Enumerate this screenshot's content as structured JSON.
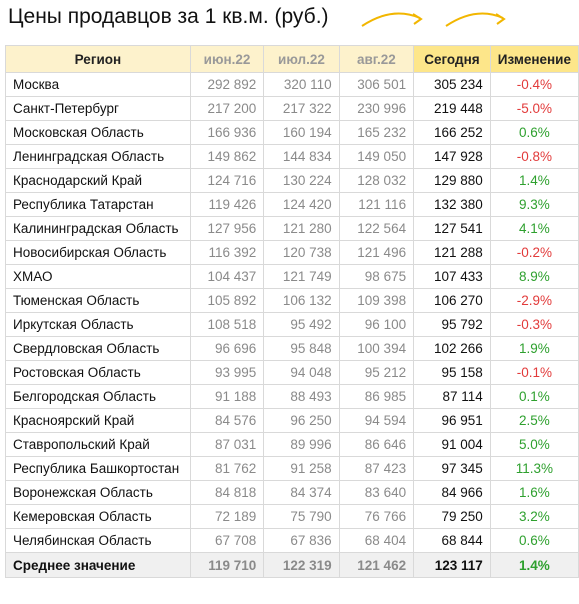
{
  "title": "Цены продавцов за 1 кв.м. (руб.)",
  "headers": [
    "Регион",
    "июн.22",
    "июл.22",
    "авг.22",
    "Сегодня",
    "Изменение"
  ],
  "rows": [
    {
      "region": "Москва",
      "jun": "292 892",
      "jul": "320 110",
      "aug": "306 501",
      "today": "305 234",
      "change": "-0.4%",
      "dir": "neg"
    },
    {
      "region": "Санкт-Петербург",
      "jun": "217 200",
      "jul": "217 322",
      "aug": "230 996",
      "today": "219 448",
      "change": "-5.0%",
      "dir": "neg"
    },
    {
      "region": "Московская Область",
      "jun": "166 936",
      "jul": "160 194",
      "aug": "165 232",
      "today": "166 252",
      "change": "0.6%",
      "dir": "pos"
    },
    {
      "region": "Ленинградская Область",
      "jun": "149 862",
      "jul": "144 834",
      "aug": "149 050",
      "today": "147 928",
      "change": "-0.8%",
      "dir": "neg"
    },
    {
      "region": "Краснодарский Край",
      "jun": "124 716",
      "jul": "130 224",
      "aug": "128 032",
      "today": "129 880",
      "change": "1.4%",
      "dir": "pos"
    },
    {
      "region": "Республика Татарстан",
      "jun": "119 426",
      "jul": "124 420",
      "aug": "121 116",
      "today": "132 380",
      "change": "9.3%",
      "dir": "pos"
    },
    {
      "region": "Калининградская Область",
      "jun": "127 956",
      "jul": "121 280",
      "aug": "122 564",
      "today": "127 541",
      "change": "4.1%",
      "dir": "pos"
    },
    {
      "region": "Новосибирская Область",
      "jun": "116 392",
      "jul": "120 738",
      "aug": "121 496",
      "today": "121 288",
      "change": "-0.2%",
      "dir": "neg"
    },
    {
      "region": "ХМАО",
      "jun": "104 437",
      "jul": "121 749",
      "aug": "98 675",
      "today": "107 433",
      "change": "8.9%",
      "dir": "pos"
    },
    {
      "region": "Тюменская Область",
      "jun": "105 892",
      "jul": "106 132",
      "aug": "109 398",
      "today": "106 270",
      "change": "-2.9%",
      "dir": "neg"
    },
    {
      "region": "Иркутская Область",
      "jun": "108 518",
      "jul": "95 492",
      "aug": "96 100",
      "today": "95 792",
      "change": "-0.3%",
      "dir": "neg"
    },
    {
      "region": "Свердловская Область",
      "jun": "96 696",
      "jul": "95 848",
      "aug": "100 394",
      "today": "102 266",
      "change": "1.9%",
      "dir": "pos"
    },
    {
      "region": "Ростовская Область",
      "jun": "93 995",
      "jul": "94 048",
      "aug": "95 212",
      "today": "95 158",
      "change": "-0.1%",
      "dir": "neg"
    },
    {
      "region": "Белгородская Область",
      "jun": "91 188",
      "jul": "88 493",
      "aug": "86 985",
      "today": "87 114",
      "change": "0.1%",
      "dir": "pos"
    },
    {
      "region": "Красноярский Край",
      "jun": "84 576",
      "jul": "96 250",
      "aug": "94 594",
      "today": "96 951",
      "change": "2.5%",
      "dir": "pos"
    },
    {
      "region": "Ставропольский Край",
      "jun": "87 031",
      "jul": "89 996",
      "aug": "86 646",
      "today": "91 004",
      "change": "5.0%",
      "dir": "pos"
    },
    {
      "region": "Республика Башкортостан",
      "jun": "81 762",
      "jul": "91 258",
      "aug": "87 423",
      "today": "97 345",
      "change": "11.3%",
      "dir": "pos"
    },
    {
      "region": "Воронежская Область",
      "jun": "84 818",
      "jul": "84 374",
      "aug": "83 640",
      "today": "84 966",
      "change": "1.6%",
      "dir": "pos"
    },
    {
      "region": "Кемеровская Область",
      "jun": "72 189",
      "jul": "75 790",
      "aug": "76 766",
      "today": "79 250",
      "change": "3.2%",
      "dir": "pos"
    },
    {
      "region": "Челябинская Область",
      "jun": "67 708",
      "jul": "67 836",
      "aug": "68 404",
      "today": "68 844",
      "change": "0.6%",
      "dir": "pos"
    }
  ],
  "average": {
    "label": "Среднее значение",
    "jun": "119 710",
    "jul": "122 319",
    "aug": "121 462",
    "today": "123 117",
    "change": "1.4%"
  },
  "colors": {
    "header_bg": "#fdf2cc",
    "header_highlight": "#fde68a",
    "positive": "#2ea02e",
    "negative": "#e23b3b",
    "arrow": "#f2b600"
  }
}
